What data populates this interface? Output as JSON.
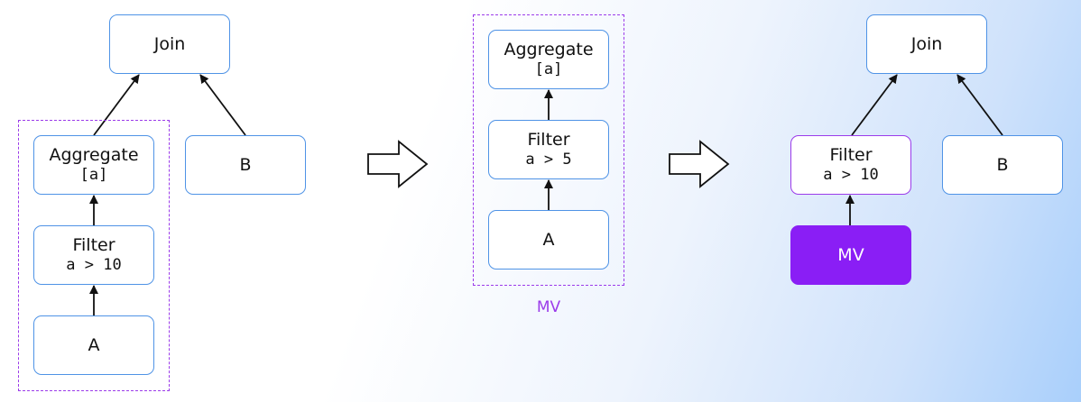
{
  "colors": {
    "node_border": "#4f93e6",
    "group_border": "#9b3bea",
    "mv_fill": "#8a1ef5",
    "edge": "#111111"
  },
  "left_plan": {
    "join": "Join",
    "aggregate": {
      "title": "Aggregate",
      "sub": "[a]"
    },
    "filter": {
      "title": "Filter",
      "sub": "a > 10"
    },
    "a": "A",
    "b": "B"
  },
  "middle_plan": {
    "aggregate": {
      "title": "Aggregate",
      "sub": "[a]"
    },
    "filter": {
      "title": "Filter",
      "sub": "a > 5"
    },
    "a": "A",
    "mv_label": "MV"
  },
  "right_plan": {
    "join": "Join",
    "filter": {
      "title": "Filter",
      "sub": "a > 10"
    },
    "mv": "MV",
    "b": "B"
  }
}
